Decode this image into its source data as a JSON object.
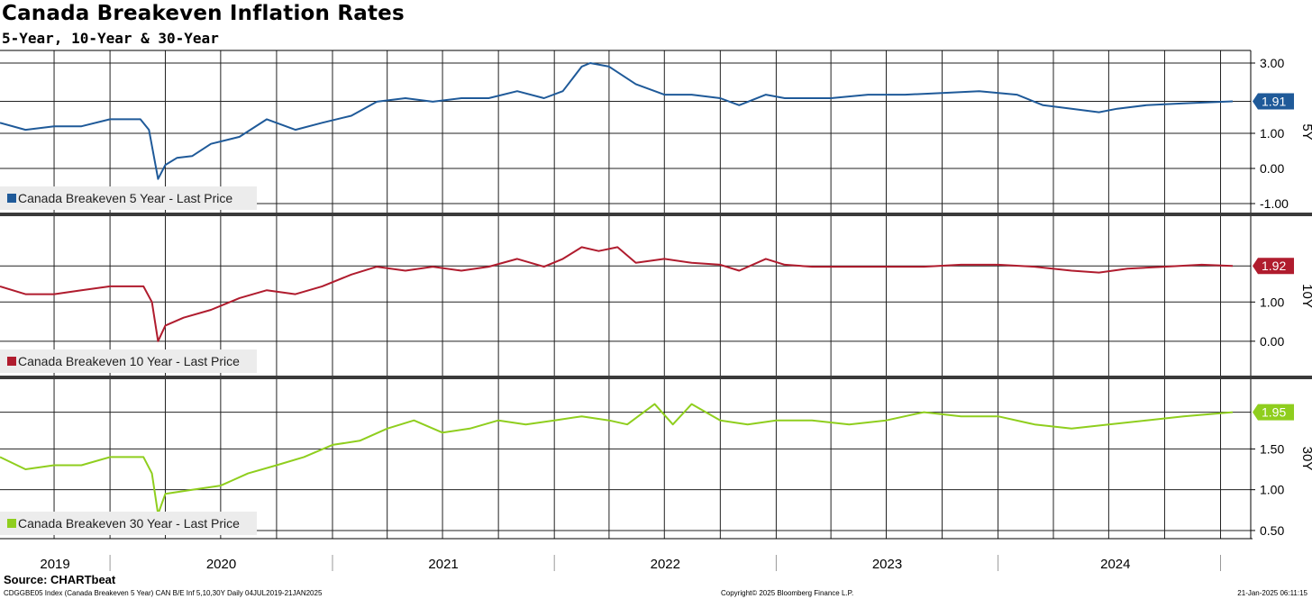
{
  "chart_data": {
    "type": "line",
    "title": "Canada Breakeven Inflation Rates",
    "subtitle": "5-Year, 10-Year & 30-Year",
    "x_range": [
      "2019-07-04",
      "2025-01-21"
    ],
    "x_year_labels": [
      "2019",
      "2020",
      "2021",
      "2022",
      "2023",
      "2024"
    ],
    "grid": true,
    "panels": [
      {
        "axis_label": "5Y",
        "ylim": [
          -1.0,
          3.0
        ],
        "ticks": [
          "3.00",
          "1.91",
          "1.00",
          "0.00",
          "-1.00"
        ],
        "series": [
          {
            "name": "Canada Breakeven 5 Year - Last Price",
            "color": "#1f5a99",
            "last_value": "1.91",
            "points": [
              [
                "2019-07-04",
                1.3
              ],
              [
                "2019-08-15",
                1.1
              ],
              [
                "2019-10-01",
                1.2
              ],
              [
                "2019-11-15",
                1.2
              ],
              [
                "2020-01-01",
                1.4
              ],
              [
                "2020-02-20",
                1.4
              ],
              [
                "2020-03-05",
                1.1
              ],
              [
                "2020-03-18",
                -0.1
              ],
              [
                "2020-03-20",
                -0.3
              ],
              [
                "2020-04-01",
                0.1
              ],
              [
                "2020-04-20",
                0.3
              ],
              [
                "2020-05-15",
                0.35
              ],
              [
                "2020-06-15",
                0.7
              ],
              [
                "2020-08-01",
                0.9
              ],
              [
                "2020-09-15",
                1.4
              ],
              [
                "2020-11-01",
                1.1
              ],
              [
                "2020-12-15",
                1.3
              ],
              [
                "2021-02-01",
                1.5
              ],
              [
                "2021-03-15",
                1.9
              ],
              [
                "2021-05-01",
                2.0
              ],
              [
                "2021-06-15",
                1.9
              ],
              [
                "2021-08-01",
                2.0
              ],
              [
                "2021-09-15",
                2.0
              ],
              [
                "2021-11-01",
                2.2
              ],
              [
                "2021-12-15",
                2.0
              ],
              [
                "2022-01-15",
                2.2
              ],
              [
                "2022-02-15",
                2.9
              ],
              [
                "2022-03-01",
                3.0
              ],
              [
                "2022-04-01",
                2.9
              ],
              [
                "2022-05-15",
                2.4
              ],
              [
                "2022-07-01",
                2.1
              ],
              [
                "2022-08-15",
                2.1
              ],
              [
                "2022-10-01",
                2.0
              ],
              [
                "2022-11-01",
                1.8
              ],
              [
                "2022-12-15",
                2.1
              ],
              [
                "2023-01-15",
                2.0
              ],
              [
                "2023-02-15",
                2.0
              ],
              [
                "2023-04-01",
                2.0
              ],
              [
                "2023-06-01",
                2.1
              ],
              [
                "2023-08-01",
                2.1
              ],
              [
                "2023-10-01",
                2.15
              ],
              [
                "2023-12-01",
                2.2
              ],
              [
                "2024-02-01",
                2.1
              ],
              [
                "2024-03-15",
                1.8
              ],
              [
                "2024-05-01",
                1.7
              ],
              [
                "2024-06-15",
                1.6
              ],
              [
                "2024-07-15",
                1.7
              ],
              [
                "2024-09-01",
                1.8
              ],
              [
                "2024-11-01",
                1.85
              ],
              [
                "2025-01-21",
                1.91
              ]
            ]
          }
        ]
      },
      {
        "axis_label": "10Y",
        "ylim": [
          -0.9,
          2.5
        ],
        "ticks": [
          "1.92",
          "1.00",
          "0.00"
        ],
        "series": [
          {
            "name": "Canada Breakeven 10 Year - Last Price",
            "color": "#b01c2e",
            "last_value": "1.92",
            "points": [
              [
                "2019-07-04",
                1.4
              ],
              [
                "2019-08-15",
                1.2
              ],
              [
                "2019-10-01",
                1.2
              ],
              [
                "2019-11-15",
                1.3
              ],
              [
                "2020-01-01",
                1.4
              ],
              [
                "2020-02-25",
                1.4
              ],
              [
                "2020-03-10",
                1.0
              ],
              [
                "2020-03-20",
                0.0
              ],
              [
                "2020-04-01",
                0.4
              ],
              [
                "2020-05-01",
                0.6
              ],
              [
                "2020-06-15",
                0.8
              ],
              [
                "2020-08-01",
                1.1
              ],
              [
                "2020-09-15",
                1.3
              ],
              [
                "2020-11-01",
                1.2
              ],
              [
                "2020-12-15",
                1.4
              ],
              [
                "2021-02-01",
                1.7
              ],
              [
                "2021-03-15",
                1.9
              ],
              [
                "2021-05-01",
                1.8
              ],
              [
                "2021-06-15",
                1.9
              ],
              [
                "2021-08-01",
                1.8
              ],
              [
                "2021-09-15",
                1.9
              ],
              [
                "2021-11-01",
                2.1
              ],
              [
                "2021-12-15",
                1.9
              ],
              [
                "2022-01-15",
                2.1
              ],
              [
                "2022-02-15",
                2.4
              ],
              [
                "2022-03-15",
                2.3
              ],
              [
                "2022-04-15",
                2.4
              ],
              [
                "2022-05-15",
                2.0
              ],
              [
                "2022-07-01",
                2.1
              ],
              [
                "2022-08-15",
                2.0
              ],
              [
                "2022-10-01",
                1.95
              ],
              [
                "2022-11-01",
                1.8
              ],
              [
                "2022-12-15",
                2.1
              ],
              [
                "2023-01-15",
                1.95
              ],
              [
                "2023-03-01",
                1.9
              ],
              [
                "2023-05-01",
                1.9
              ],
              [
                "2023-07-01",
                1.9
              ],
              [
                "2023-09-01",
                1.9
              ],
              [
                "2023-11-01",
                1.95
              ],
              [
                "2024-01-01",
                1.95
              ],
              [
                "2024-03-01",
                1.9
              ],
              [
                "2024-05-01",
                1.8
              ],
              [
                "2024-06-15",
                1.75
              ],
              [
                "2024-08-01",
                1.85
              ],
              [
                "2024-10-01",
                1.9
              ],
              [
                "2024-12-01",
                1.95
              ],
              [
                "2025-01-21",
                1.92
              ]
            ]
          }
        ]
      },
      {
        "axis_label": "30Y",
        "ylim": [
          0.4,
          2.2
        ],
        "ticks": [
          "1.95",
          "1.50",
          "1.00",
          "0.50"
        ],
        "series": [
          {
            "name": "Canada Breakeven 30 Year - Last Price",
            "color": "#8fce1e",
            "last_value": "1.95",
            "points": [
              [
                "2019-07-04",
                1.4
              ],
              [
                "2019-08-15",
                1.25
              ],
              [
                "2019-10-01",
                1.3
              ],
              [
                "2019-11-15",
                1.3
              ],
              [
                "2020-01-01",
                1.4
              ],
              [
                "2020-02-25",
                1.4
              ],
              [
                "2020-03-10",
                1.2
              ],
              [
                "2020-03-20",
                0.7
              ],
              [
                "2020-04-01",
                0.95
              ],
              [
                "2020-05-15",
                1.0
              ],
              [
                "2020-07-01",
                1.05
              ],
              [
                "2020-08-15",
                1.2
              ],
              [
                "2020-10-01",
                1.3
              ],
              [
                "2020-11-15",
                1.4
              ],
              [
                "2021-01-01",
                1.55
              ],
              [
                "2021-02-15",
                1.6
              ],
              [
                "2021-04-01",
                1.75
              ],
              [
                "2021-05-15",
                1.85
              ],
              [
                "2021-07-01",
                1.7
              ],
              [
                "2021-08-15",
                1.75
              ],
              [
                "2021-10-01",
                1.85
              ],
              [
                "2021-11-15",
                1.8
              ],
              [
                "2022-01-01",
                1.85
              ],
              [
                "2022-02-15",
                1.9
              ],
              [
                "2022-04-01",
                1.85
              ],
              [
                "2022-05-01",
                1.8
              ],
              [
                "2022-06-15",
                2.05
              ],
              [
                "2022-07-15",
                1.8
              ],
              [
                "2022-08-15",
                2.05
              ],
              [
                "2022-10-01",
                1.85
              ],
              [
                "2022-11-15",
                1.8
              ],
              [
                "2023-01-01",
                1.85
              ],
              [
                "2023-03-01",
                1.85
              ],
              [
                "2023-05-01",
                1.8
              ],
              [
                "2023-07-01",
                1.85
              ],
              [
                "2023-09-01",
                1.95
              ],
              [
                "2023-11-01",
                1.9
              ],
              [
                "2024-01-01",
                1.9
              ],
              [
                "2024-03-01",
                1.8
              ],
              [
                "2024-05-01",
                1.75
              ],
              [
                "2024-07-01",
                1.8
              ],
              [
                "2024-09-01",
                1.85
              ],
              [
                "2024-11-01",
                1.9
              ],
              [
                "2025-01-21",
                1.95
              ]
            ]
          }
        ]
      }
    ]
  },
  "source": "Source: CHARTbeat",
  "footer": {
    "left": "CDGGBE05 Index (Canada Breakeven 5 Year) CAN B/E Inf 5,10,30Y  Daily 04JUL2019-21JAN2025",
    "center": "Copyright© 2025 Bloomberg Finance L.P.",
    "right": "21-Jan-2025 06:11:15"
  }
}
